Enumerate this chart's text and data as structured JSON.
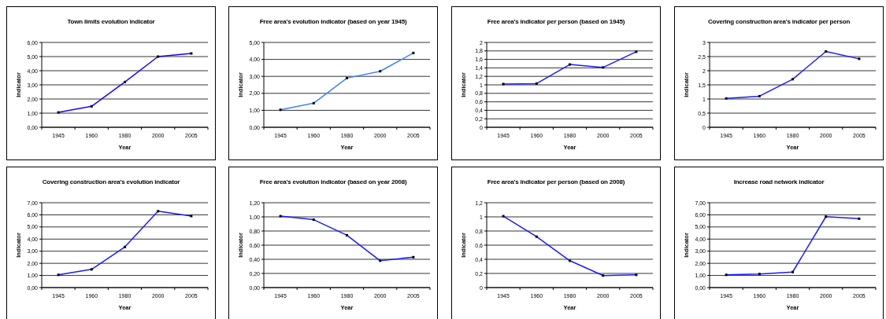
{
  "chart_data": [
    {
      "type": "line",
      "title": "Town  limits evolution indicator",
      "xlabel": "Year",
      "ylabel": "Indicator",
      "categories": [
        "1945",
        "1960",
        "1980",
        "2000",
        "2005"
      ],
      "series": [
        {
          "color": "#1a00ff",
          "values": [
            1.05,
            1.48,
            3.2,
            5.0,
            5.22
          ]
        }
      ],
      "ylim": [
        0,
        6
      ],
      "yticks": [
        {
          "value": 0,
          "label": "0,00"
        },
        {
          "value": 1,
          "label": "1,00"
        },
        {
          "value": 2,
          "label": "2,00"
        },
        {
          "value": 3,
          "label": "3,00"
        },
        {
          "value": 4,
          "label": "4,00"
        },
        {
          "value": 5,
          "label": "5,00"
        },
        {
          "value": 6,
          "label": "6,00"
        }
      ],
      "grid": "y",
      "marker": "square"
    },
    {
      "type": "line",
      "title": "Free area's evolution indicator (based on year 1945)",
      "xlabel": "Year",
      "ylabel": "Indicator",
      "categories": [
        "1945",
        "1960",
        "1980",
        "2000",
        "2005"
      ],
      "series": [
        {
          "color": "#3f7fff",
          "values": [
            1.03,
            1.42,
            2.9,
            3.3,
            4.38
          ]
        }
      ],
      "ylim": [
        0,
        5
      ],
      "yticks": [
        {
          "value": 0,
          "label": "0,00"
        },
        {
          "value": 1,
          "label": "1,00"
        },
        {
          "value": 2,
          "label": "2,00"
        },
        {
          "value": 3,
          "label": "3,00"
        },
        {
          "value": 4,
          "label": "4,00"
        },
        {
          "value": 5,
          "label": "5,00"
        }
      ],
      "grid": "y",
      "marker": "square"
    },
    {
      "type": "line",
      "title": "Free area's indicator per person (based on 1945)",
      "xlabel": "Year",
      "ylabel": "Indicator",
      "categories": [
        "1945",
        "1960",
        "1980",
        "2000",
        "2005"
      ],
      "series": [
        {
          "color": "#1a1aff",
          "values": [
            1.02,
            1.03,
            1.48,
            1.41,
            1.78
          ]
        }
      ],
      "ylim": [
        0,
        2
      ],
      "yticks": [
        0,
        {
          "value": 0.2,
          "label": "0,2"
        },
        {
          "value": 0.4,
          "label": "0,4"
        },
        {
          "value": 0.6,
          "label": "0,6"
        },
        {
          "value": 0.8,
          "label": "0,8"
        },
        1,
        {
          "value": 1.2,
          "label": "1,2"
        },
        {
          "value": 1.4,
          "label": "1,4"
        },
        {
          "value": 1.6,
          "label": "1,6"
        },
        {
          "value": 1.8,
          "label": "1,8"
        },
        2
      ],
      "grid": "y",
      "marker": "square"
    },
    {
      "type": "line",
      "title": "Covering construction area's indicator per person",
      "xlabel": "Year",
      "ylabel": "Indicator",
      "categories": [
        "1945",
        "1960",
        "1980",
        "2000",
        "2005"
      ],
      "series": [
        {
          "color": "#1a1aff",
          "values": [
            1.02,
            1.1,
            1.7,
            2.68,
            2.42
          ]
        }
      ],
      "ylim": [
        0,
        3
      ],
      "yticks": [
        0,
        {
          "value": 0.5,
          "label": "0,5"
        },
        1,
        {
          "value": 1.5,
          "label": "1,5"
        },
        2,
        {
          "value": 2.5,
          "label": "2,5"
        },
        3
      ],
      "grid": "y",
      "marker": "square"
    },
    {
      "type": "line",
      "title": "Covering construction area's evolution indicator",
      "xlabel": "Year",
      "ylabel": "Indicator",
      "categories": [
        "1945",
        "1960",
        "1980",
        "2000",
        "2005"
      ],
      "series": [
        {
          "color": "#1a1aff",
          "values": [
            1.05,
            1.5,
            3.35,
            6.3,
            5.9
          ]
        }
      ],
      "ylim": [
        0,
        7
      ],
      "yticks": [
        {
          "value": 0,
          "label": "0,00"
        },
        {
          "value": 1,
          "label": "1,00"
        },
        {
          "value": 2,
          "label": "2,00"
        },
        {
          "value": 3,
          "label": "3,00"
        },
        {
          "value": 4,
          "label": "4,00"
        },
        {
          "value": 5,
          "label": "5,00"
        },
        {
          "value": 6,
          "label": "6,00"
        },
        {
          "value": 7,
          "label": "7,00"
        }
      ],
      "grid": "y",
      "marker": "square"
    },
    {
      "type": "line",
      "title": "Free area's evolution indicator (based on year 2008)",
      "xlabel": "Year",
      "ylabel": "Indicator",
      "categories": [
        "1945",
        "1960",
        "1980",
        "2000",
        "2005"
      ],
      "series": [
        {
          "color": "#1a1aff",
          "values": [
            1.01,
            0.96,
            0.74,
            0.38,
            0.43
          ]
        }
      ],
      "ylim": [
        0,
        1.2
      ],
      "yticks": [
        {
          "value": 0,
          "label": "0,00"
        },
        {
          "value": 0.2,
          "label": "0,20"
        },
        {
          "value": 0.4,
          "label": "0,40"
        },
        {
          "value": 0.6,
          "label": "0,60"
        },
        {
          "value": 0.8,
          "label": "0,80"
        },
        {
          "value": 1,
          "label": "1,00"
        },
        {
          "value": 1.2,
          "label": "1,20"
        }
      ],
      "grid": "y",
      "marker": "square"
    },
    {
      "type": "line",
      "title": "Free area's indicator per person (based on 2008)",
      "xlabel": "Year",
      "ylabel": "Indicator",
      "categories": [
        "1945",
        "1960",
        "1980",
        "2000",
        "2005"
      ],
      "series": [
        {
          "color": "#1a1aff",
          "values": [
            1.01,
            0.72,
            0.38,
            0.17,
            0.18
          ]
        }
      ],
      "ylim": [
        0,
        1.2
      ],
      "yticks": [
        0,
        {
          "value": 0.2,
          "label": "0,2"
        },
        {
          "value": 0.4,
          "label": "0,4"
        },
        {
          "value": 0.6,
          "label": "0,6"
        },
        {
          "value": 0.8,
          "label": "0,8"
        },
        1,
        {
          "value": 1.2,
          "label": "1,2"
        }
      ],
      "grid": "y",
      "marker": "square"
    },
    {
      "type": "line",
      "title": "Increase road network indicator",
      "xlabel": "Year",
      "ylabel": "Indicator",
      "categories": [
        "1945",
        "1960",
        "1980",
        "2000",
        "2005"
      ],
      "series": [
        {
          "color": "#1a1aff",
          "values": [
            1.05,
            1.12,
            1.28,
            5.85,
            5.68
          ]
        }
      ],
      "ylim": [
        0,
        7
      ],
      "yticks": [
        {
          "value": 0,
          "label": "0,00"
        },
        {
          "value": 1,
          "label": "1,00"
        },
        {
          "value": 2,
          "label": "2,00"
        },
        {
          "value": 3,
          "label": "3,00"
        },
        {
          "value": 4,
          "label": "4,00"
        },
        {
          "value": 5,
          "label": "5,00"
        },
        {
          "value": 6,
          "label": "6,00"
        },
        {
          "value": 7,
          "label": "7,00"
        }
      ],
      "grid": "y",
      "marker": "square"
    }
  ]
}
